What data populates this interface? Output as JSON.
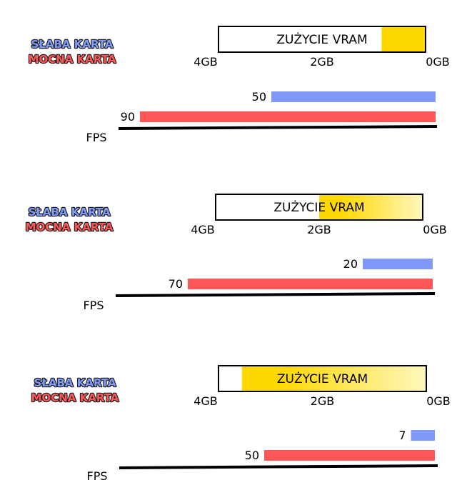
{
  "colors": {
    "weak": "#7f99f9",
    "strong": "#fe5656",
    "vram_fill_dark": "#ffd800",
    "vram_fill_light": "#fff8bf",
    "outline": "#000000"
  },
  "legend": {
    "weak_label": "SŁABA KARTA",
    "strong_label": "MOCNA KARTA"
  },
  "chart_data": [
    {
      "type": "bar",
      "legend_position": "left",
      "vram": {
        "title": "ZUŻYCIE VRAM",
        "axis_labels": [
          "4GB",
          "2GB",
          "0GB"
        ],
        "max_gb": 4,
        "used_gb": 0.85,
        "fill": "solid"
      },
      "fps": {
        "axis_label": "FPS",
        "max": 100,
        "series": [
          {
            "name": "SŁABA KARTA",
            "value": 50,
            "label": "50",
            "color": "#7f99f9"
          },
          {
            "name": "MOCNA KARTA",
            "value": 90,
            "label": "90",
            "color": "#fe5656"
          }
        ]
      }
    },
    {
      "type": "bar",
      "legend_position": "left",
      "vram": {
        "title": "ZUŻYCIE VRAM",
        "axis_labels": [
          "4GB",
          "2GB",
          "0GB"
        ],
        "max_gb": 4,
        "used_gb": 2.0,
        "fill": "gradient"
      },
      "fps": {
        "axis_label": "FPS",
        "max": 100,
        "series": [
          {
            "name": "SŁABA KARTA",
            "value": 20,
            "label": "20",
            "color": "#7f99f9"
          },
          {
            "name": "MOCNA KARTA",
            "value": 70,
            "label": "70",
            "color": "#fe5656"
          }
        ]
      }
    },
    {
      "type": "bar",
      "legend_position": "left",
      "vram": {
        "title": "ZUŻYCIE VRAM",
        "axis_labels": [
          "4GB",
          "2GB",
          "0GB"
        ],
        "max_gb": 4,
        "used_gb": 3.55,
        "fill": "gradient"
      },
      "fps": {
        "axis_label": "FPS",
        "max": 100,
        "series": [
          {
            "name": "SŁABA KARTA",
            "value": 7,
            "label": "7",
            "color": "#7f99f9"
          },
          {
            "name": "MOCNA KARTA",
            "value": 50,
            "label": "50",
            "color": "#fe5656"
          }
        ]
      }
    }
  ]
}
